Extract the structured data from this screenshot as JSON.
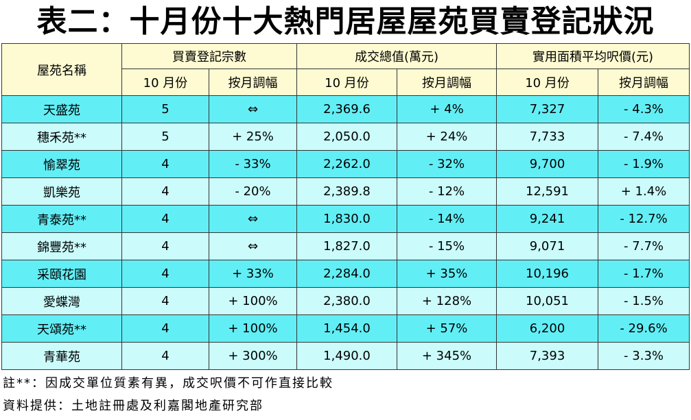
{
  "title": "表二：十月份十大熱門居屋屋苑買賣登記狀況",
  "headers": {
    "estate": "屋苑名稱",
    "group1": "買賣登記宗數",
    "group2": "成交總值(萬元)",
    "group3": "實用面積平均呎價(元)",
    "sub_month": "10 月份",
    "sub_change": "按月調幅"
  },
  "rows": [
    {
      "name": "天盛苑",
      "count": "5",
      "count_chg": "⇔",
      "value": "2,369.6",
      "value_chg": "+ 4%",
      "price": "7,327",
      "price_chg": "- 4.3%"
    },
    {
      "name": "穗禾苑**",
      "count": "5",
      "count_chg": "+ 25%",
      "value": "2,050.0",
      "value_chg": "+ 24%",
      "price": "7,733",
      "price_chg": "- 7.4%"
    },
    {
      "name": "愉翠苑",
      "count": "4",
      "count_chg": "- 33%",
      "value": "2,262.0",
      "value_chg": "- 32%",
      "price": "9,700",
      "price_chg": "- 1.9%"
    },
    {
      "name": "凱樂苑",
      "count": "4",
      "count_chg": "- 20%",
      "value": "2,389.8",
      "value_chg": "- 12%",
      "price": "12,591",
      "price_chg": "+ 1.4%"
    },
    {
      "name": "青泰苑**",
      "count": "4",
      "count_chg": "⇔",
      "value": "1,830.0",
      "value_chg": "- 14%",
      "price": "9,241",
      "price_chg": "- 12.7%"
    },
    {
      "name": "錦豐苑**",
      "count": "4",
      "count_chg": "⇔",
      "value": "1,827.0",
      "value_chg": "- 15%",
      "price": "9,071",
      "price_chg": "- 7.7%"
    },
    {
      "name": "采頤花園",
      "count": "4",
      "count_chg": "+ 33%",
      "value": "2,284.0",
      "value_chg": "+ 35%",
      "price": "10,196",
      "price_chg": "- 1.7%"
    },
    {
      "name": "愛蝶灣",
      "count": "4",
      "count_chg": "+ 100%",
      "value": "2,380.0",
      "value_chg": "+ 128%",
      "price": "10,051",
      "price_chg": "- 1.5%"
    },
    {
      "name": "天頌苑**",
      "count": "4",
      "count_chg": "+ 100%",
      "value": "1,454.0",
      "value_chg": "+ 57%",
      "price": "6,200",
      "price_chg": "- 29.6%"
    },
    {
      "name": "青華苑",
      "count": "4",
      "count_chg": "+ 300%",
      "value": "1,490.0",
      "value_chg": "+ 345%",
      "price": "7,393",
      "price_chg": "- 3.3%"
    }
  ],
  "footnotes": {
    "note": "註**：因成交單位質素有異，成交呎價不可作直接比較",
    "source": "資料提供：土地註冊處及利嘉閣地產研究部"
  }
}
